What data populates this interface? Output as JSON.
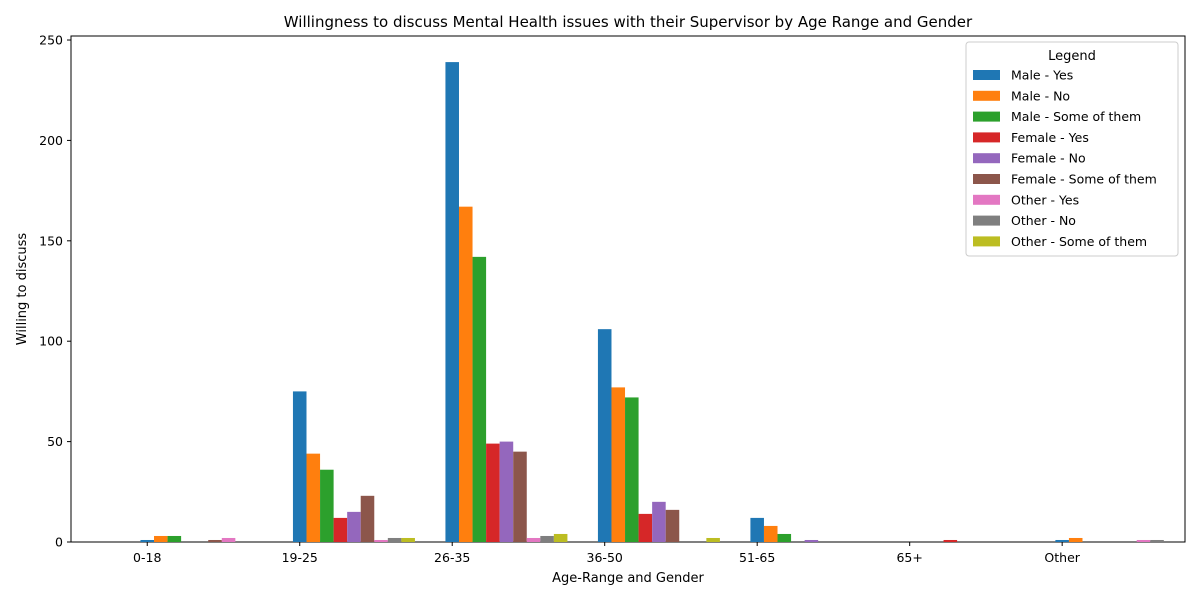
{
  "chart_data": {
    "type": "bar",
    "title": "Willingness to discuss Mental Health issues with their Supervisor by Age Range and Gender",
    "xlabel": "Age-Range and Gender",
    "ylabel": "Willing to discuss",
    "ylim": [
      0,
      252
    ],
    "yticks": [
      0,
      50,
      100,
      150,
      200,
      250
    ],
    "grid": false,
    "legend_title": "Legend",
    "legend_position": "top-right",
    "categories": [
      "0-18",
      "19-25",
      "26-35",
      "36-50",
      "51-65",
      "65+",
      "Other"
    ],
    "series": [
      {
        "name": "Male - Yes",
        "color": "#1f77b4",
        "values": [
          1,
          75,
          239,
          106,
          12,
          0,
          1
        ]
      },
      {
        "name": "Male - No",
        "color": "#ff7f0e",
        "values": [
          3,
          44,
          167,
          77,
          8,
          0,
          2
        ]
      },
      {
        "name": "Male - Some of them",
        "color": "#2ca02c",
        "values": [
          3,
          36,
          142,
          72,
          4,
          0,
          0
        ]
      },
      {
        "name": "Female - Yes",
        "color": "#d62728",
        "values": [
          0,
          12,
          49,
          14,
          0,
          1,
          0
        ]
      },
      {
        "name": "Female - No",
        "color": "#9467bd",
        "values": [
          0,
          15,
          50,
          20,
          1,
          0,
          0
        ]
      },
      {
        "name": "Female - Some of them",
        "color": "#8c564b",
        "values": [
          1,
          23,
          45,
          16,
          0,
          0,
          0
        ]
      },
      {
        "name": "Other - Yes",
        "color": "#e377c2",
        "values": [
          2,
          1,
          2,
          0,
          0,
          0,
          1
        ]
      },
      {
        "name": "Other - No",
        "color": "#7f7f7f",
        "values": [
          0,
          2,
          3,
          0,
          0,
          0,
          1
        ]
      },
      {
        "name": "Other - Some of them",
        "color": "#bcbd22",
        "values": [
          0,
          2,
          4,
          2,
          0,
          0,
          0
        ]
      }
    ]
  }
}
